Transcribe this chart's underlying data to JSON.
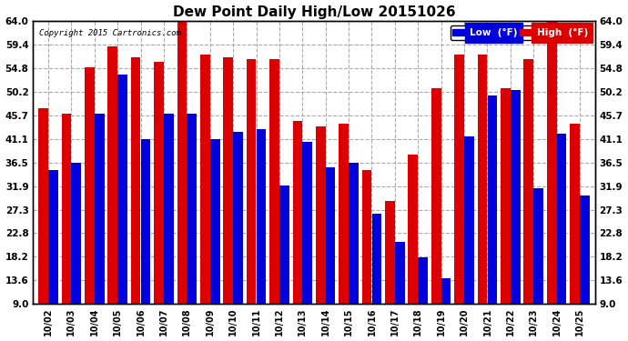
{
  "title": "Dew Point Daily High/Low 20151026",
  "copyright": "Copyright 2015 Cartronics.com",
  "dates": [
    "10/02",
    "10/03",
    "10/04",
    "10/05",
    "10/06",
    "10/07",
    "10/08",
    "10/09",
    "10/10",
    "10/11",
    "10/12",
    "10/13",
    "10/14",
    "10/15",
    "10/16",
    "10/17",
    "10/18",
    "10/19",
    "10/20",
    "10/21",
    "10/22",
    "10/23",
    "10/24",
    "10/25"
  ],
  "high": [
    47.0,
    46.0,
    55.0,
    59.0,
    57.0,
    56.0,
    64.0,
    57.5,
    57.0,
    56.5,
    56.5,
    44.5,
    43.5,
    44.0,
    35.0,
    29.0,
    38.0,
    51.0,
    57.5,
    57.5,
    51.0,
    56.5,
    64.0,
    44.0
  ],
  "low": [
    35.0,
    36.5,
    46.0,
    53.5,
    41.0,
    46.0,
    46.0,
    41.0,
    42.5,
    43.0,
    32.0,
    40.5,
    35.5,
    36.5,
    26.5,
    21.0,
    18.0,
    14.0,
    41.5,
    49.5,
    50.5,
    31.5,
    42.0,
    30.0
  ],
  "bar_color_low": "#0000dd",
  "bar_color_high": "#dd0000",
  "bg_color": "#ffffff",
  "plot_bg_color": "#ffffff",
  "grid_color": "#aaaaaa",
  "yticks": [
    9.0,
    13.6,
    18.2,
    22.8,
    27.3,
    31.9,
    36.5,
    41.1,
    45.7,
    50.2,
    54.8,
    59.4,
    64.0
  ],
  "ymin": 9.0,
  "ymax": 64.0,
  "legend_low_label": "Low  (°F)",
  "legend_high_label": "High  (°F)"
}
